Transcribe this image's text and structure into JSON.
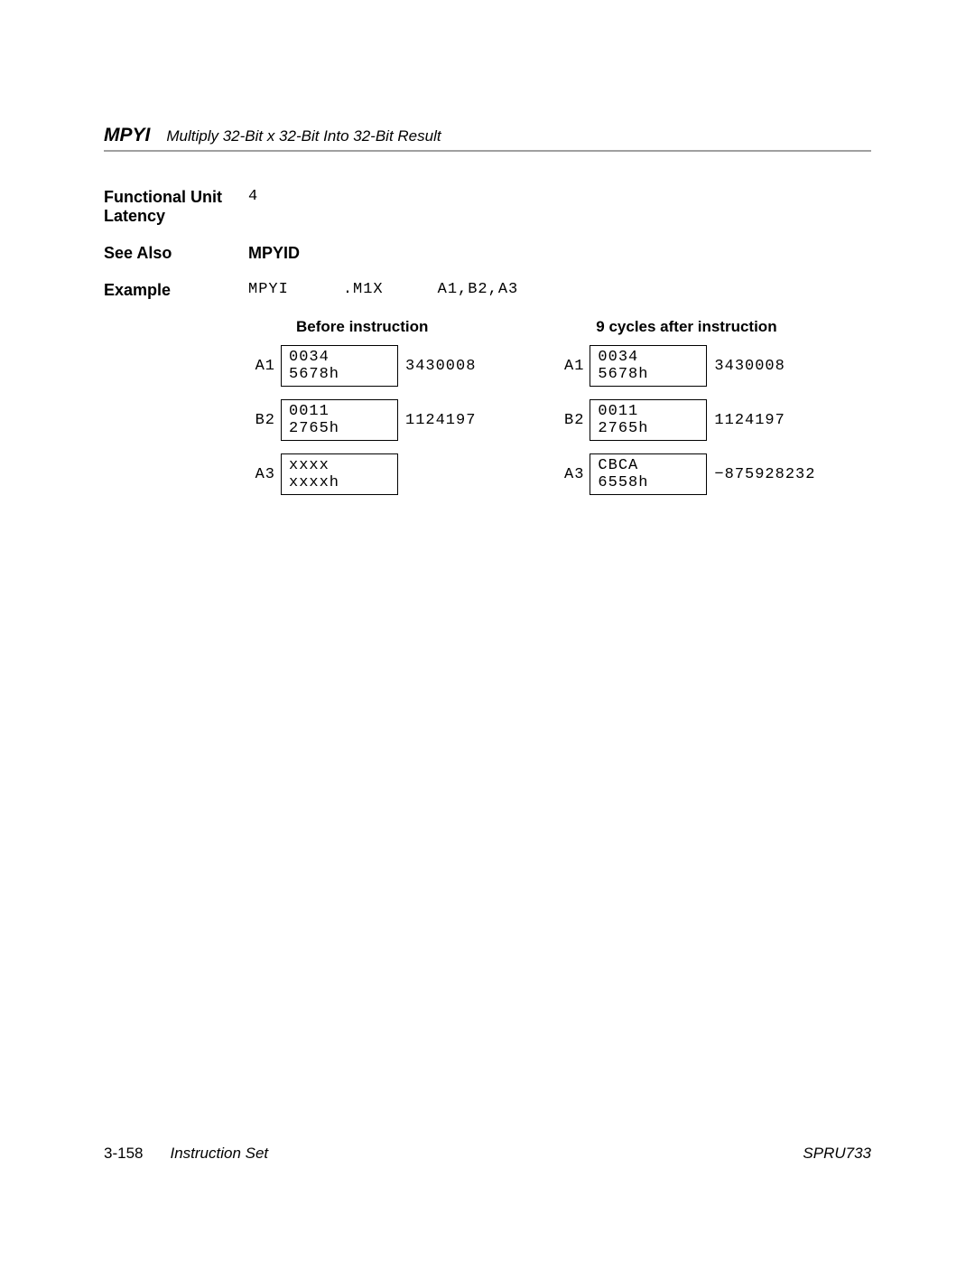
{
  "header": {
    "mnemonic": "MPYI",
    "description": "Multiply 32-Bit x 32-Bit Into 32-Bit Result"
  },
  "fields": {
    "functional_unit_latency_label": "Functional Unit Latency",
    "functional_unit_latency_value": "4",
    "see_also_label": "See Also",
    "see_also_value": "MPYID",
    "example_label": "Example",
    "example_mnemonic": "MPYI",
    "example_unit": ".M1X",
    "example_operands": "A1,B2,A3"
  },
  "register_table": {
    "before_label": "Before instruction",
    "after_label": "9 cycles after instruction",
    "before": [
      {
        "reg": "A1",
        "hex": "0034 5678h",
        "dec": "3430008"
      },
      {
        "reg": "B2",
        "hex": "0011 2765h",
        "dec": "1124197"
      },
      {
        "reg": "A3",
        "hex": "xxxx xxxxh",
        "dec": ""
      }
    ],
    "after": [
      {
        "reg": "A1",
        "hex": "0034 5678h",
        "dec": "3430008"
      },
      {
        "reg": "B2",
        "hex": "0011 2765h",
        "dec": "1124197"
      },
      {
        "reg": "A3",
        "hex": "CBCA 6558h",
        "dec": "−875928232"
      }
    ]
  },
  "footer": {
    "page": "3-158",
    "section": "Instruction Set",
    "docid": "SPRU733"
  }
}
